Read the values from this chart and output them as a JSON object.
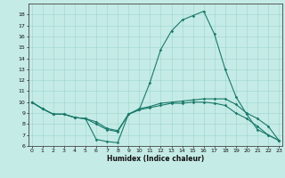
{
  "xlabel": "Humidex (Indice chaleur)",
  "background_color": "#c5ebe6",
  "line_color": "#1a7a6a",
  "grid_color": "#9dd4ce",
  "x": [
    0,
    1,
    2,
    3,
    4,
    5,
    6,
    7,
    8,
    9,
    10,
    11,
    12,
    13,
    14,
    15,
    16,
    17,
    18,
    19,
    20,
    21,
    22,
    23
  ],
  "line1": [
    10.0,
    9.4,
    8.9,
    8.9,
    8.6,
    8.5,
    6.6,
    6.4,
    6.3,
    8.9,
    9.3,
    11.8,
    14.8,
    16.5,
    17.5,
    17.9,
    18.3,
    16.2,
    13.0,
    10.5,
    8.9,
    7.5,
    7.0,
    6.5
  ],
  "line2": [
    10.0,
    9.4,
    8.9,
    8.9,
    8.6,
    8.5,
    8.2,
    7.6,
    7.4,
    8.9,
    9.4,
    9.6,
    9.9,
    10.0,
    10.1,
    10.2,
    10.3,
    10.3,
    10.3,
    9.8,
    9.0,
    8.5,
    7.8,
    6.5
  ],
  "line3": [
    10.0,
    9.4,
    8.9,
    8.9,
    8.6,
    8.5,
    8.0,
    7.5,
    7.3,
    8.9,
    9.3,
    9.5,
    9.7,
    9.9,
    9.9,
    10.0,
    10.0,
    9.9,
    9.7,
    9.0,
    8.5,
    7.8,
    7.0,
    6.5
  ],
  "ylim": [
    6,
    19
  ],
  "xlim": [
    -0.3,
    23.3
  ],
  "yticks": [
    6,
    7,
    8,
    9,
    10,
    11,
    12,
    13,
    14,
    15,
    16,
    17,
    18
  ],
  "xticks": [
    0,
    1,
    2,
    3,
    4,
    5,
    6,
    7,
    8,
    9,
    10,
    11,
    12,
    13,
    14,
    15,
    16,
    17,
    18,
    19,
    20,
    21,
    22,
    23
  ],
  "tick_fontsize": 4.5,
  "xlabel_fontsize": 5.5,
  "marker_size": 1.8,
  "line_width": 0.8
}
